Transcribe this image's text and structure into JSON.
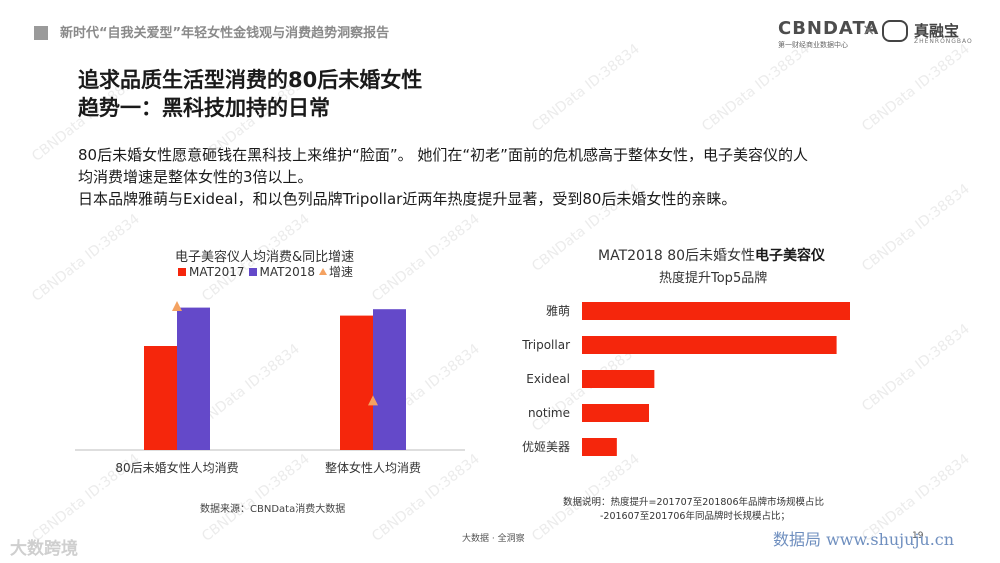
{
  "header": {
    "report_title": "新时代“自我关爱型”年轻女性金钱观与消费趋势洞察报告",
    "logo_cbndata": "CBNDATA",
    "logo_cbndata_sub": "第一财经商业数据中心",
    "logo_separator": "×",
    "logo_partner": "真融宝",
    "logo_partner_sub": "ZHENRONGBAO"
  },
  "title": {
    "line1": "追求品质生活型消费的80后未婚女性",
    "line2": "趋势一：黑科技加持的日常"
  },
  "body": {
    "p1": "80后未婚女性愿意砸钱在黑科技上来维护“脸面”。 她们在“初老”面前的危机感高于整体女性，电子美容仪的人",
    "p2": "均消费增速是整体女性的3倍以上。",
    "p3": "日本品牌雅萌与Exideal，和以色列品牌Tripollar近两年热度提升显著，受到80后未婚女性的亲睐。"
  },
  "left_chart": {
    "title": "电子美容仪人均消费&同比增速",
    "legend": [
      "MAT2017",
      "MAT2018",
      "增速"
    ],
    "source": "数据来源：CBNData消费大数据"
  },
  "right_chart": {
    "title_prefix": "MAT2018 80后未婚女性",
    "title_bold": "电子美容仪",
    "title_line2": "热度提升Top5品牌",
    "note_line1": "数据说明：热度提升=201707至201806年品牌市场规模占比",
    "note_line2": "-201607至201706年同品牌时长规模占比；"
  },
  "chart_data": [
    {
      "type": "bar",
      "title": "电子美容仪人均消费&同比增速",
      "categories": [
        "80后未婚女性人均消费",
        "整体女性人均消费"
      ],
      "series": [
        {
          "name": "MAT2017",
          "values": [
            65,
            84
          ],
          "color": "#f5260c"
        },
        {
          "name": "MAT2018",
          "values": [
            89,
            88
          ],
          "color": "#6449c9"
        },
        {
          "name": "增速",
          "values": [
            90,
            31
          ],
          "color": "#f4a261",
          "marker": "triangle"
        }
      ],
      "ylim": [
        0,
        100
      ],
      "grid": false,
      "legend": "top"
    },
    {
      "type": "bar",
      "orientation": "horizontal",
      "title": "MAT2018 80后未婚女性电子美容仪热度提升Top5品牌",
      "categories": [
        "雅萌",
        "Tripollar",
        "Exideal",
        "notime",
        "优姬美器"
      ],
      "values": [
        100,
        95,
        27,
        25,
        13
      ],
      "color": "#f5260c",
      "xlim": [
        0,
        100
      ],
      "grid": false
    }
  ],
  "footer": {
    "center": "大数据 · 全洞察",
    "page_number": "19",
    "watermark_left": "大数跨境",
    "watermark_right": "数据局 www.shujuju.cn"
  },
  "watermark": "CBNData ID:38834"
}
